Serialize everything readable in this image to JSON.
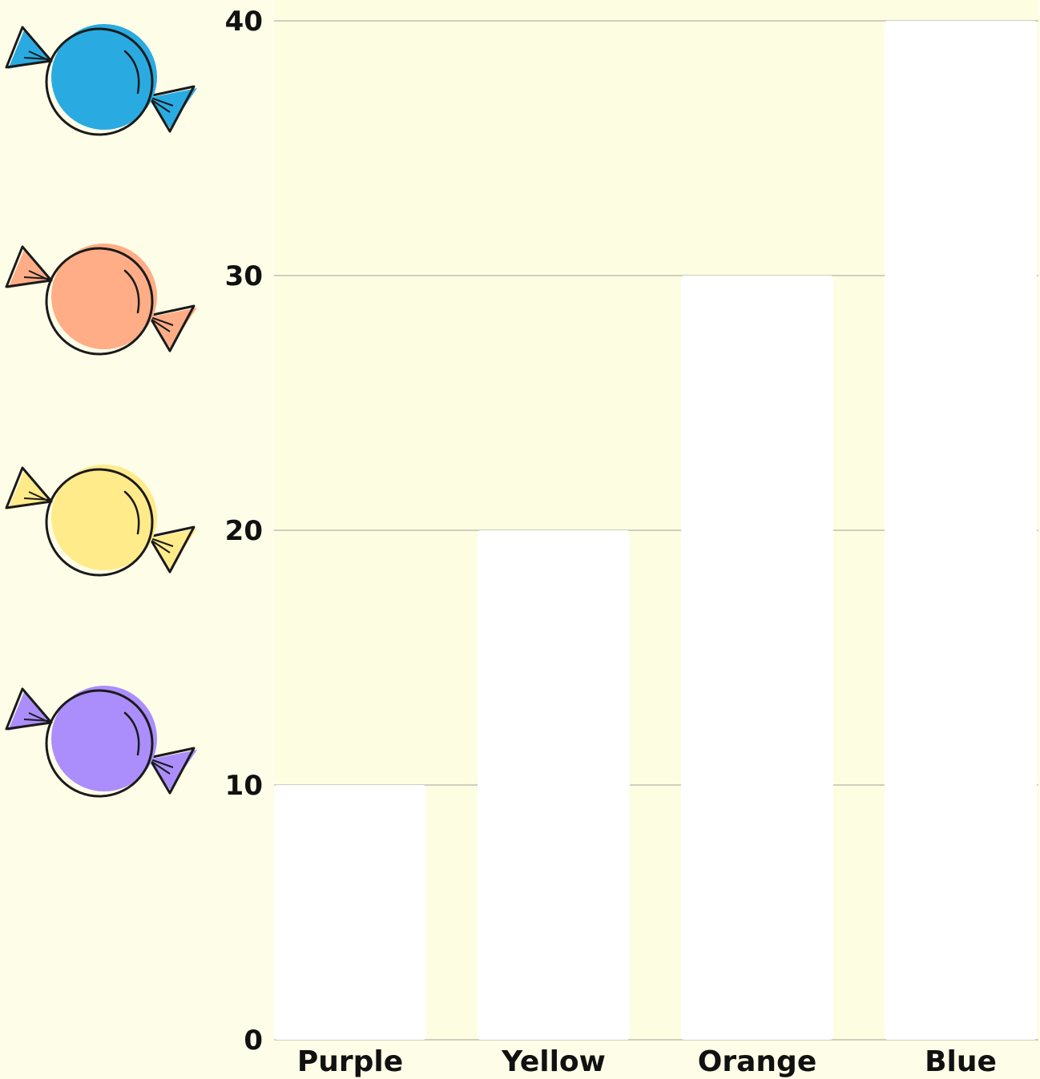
{
  "chart_data": {
    "type": "bar",
    "title": "",
    "xlabel": "",
    "ylabel": "",
    "categories": [
      "Purple",
      "Yellow",
      "Orange",
      "Blue"
    ],
    "values": [
      10,
      20,
      30,
      40
    ],
    "ylim": [
      0,
      40
    ],
    "yticks": [
      "0",
      "10",
      "20",
      "30",
      "40"
    ],
    "grid": true,
    "legend": "none",
    "bar_color": "#ffffff",
    "plot_background": "#fdfde2"
  },
  "colors": {
    "page_background": "#fefde8",
    "gridline": "#cfcfbf",
    "outline": "#1a1a1a"
  },
  "decorations": [
    {
      "icon": "blue-candy-icon",
      "color": "#29abe2"
    },
    {
      "icon": "orange-candy-icon",
      "color": "#ffad86"
    },
    {
      "icon": "yellow-candy-icon",
      "color": "#ffeb8a"
    },
    {
      "icon": "purple-candy-icon",
      "color": "#ab8efb"
    }
  ]
}
